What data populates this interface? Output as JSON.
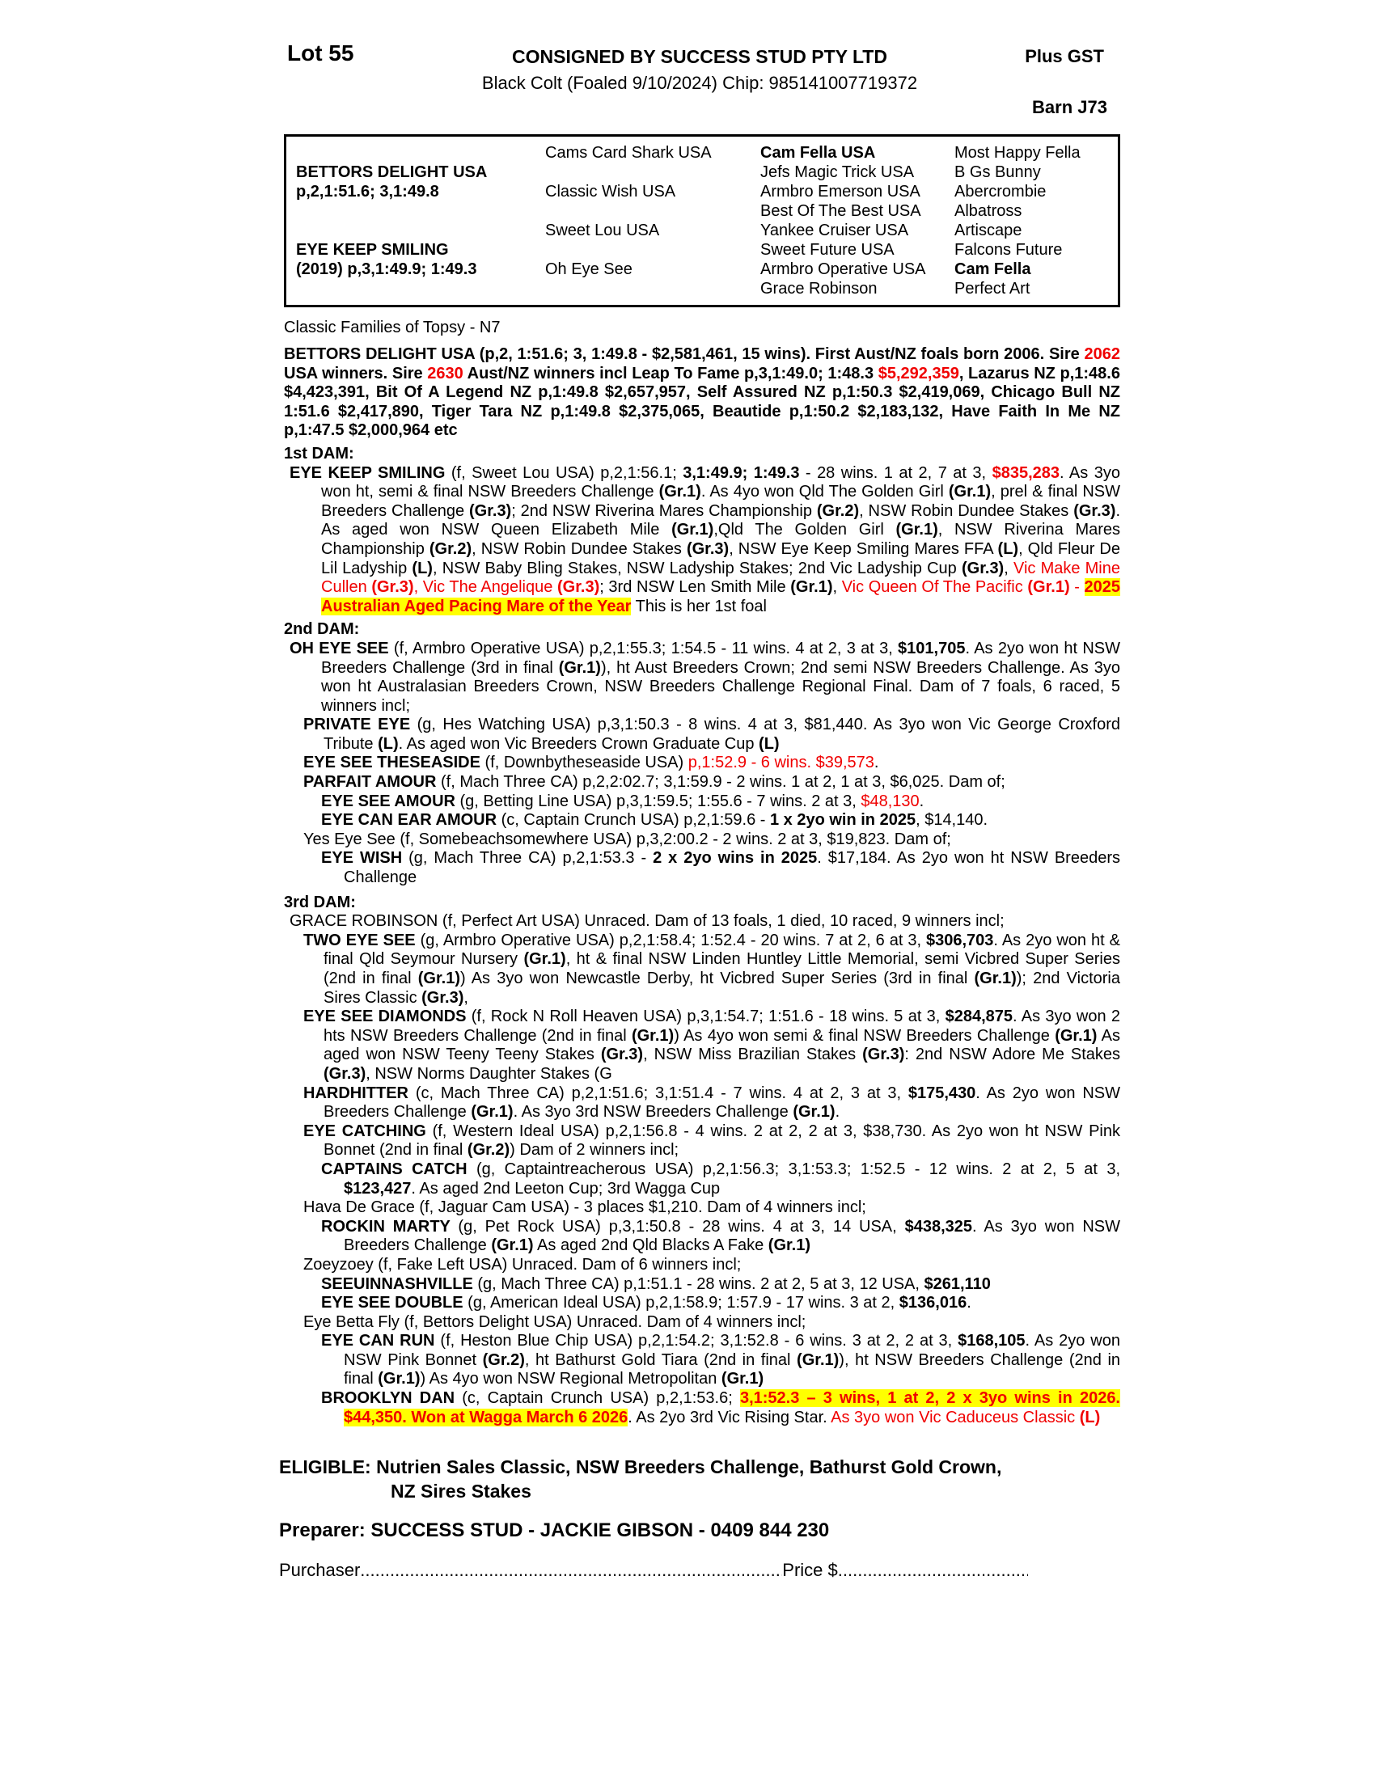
{
  "colors": {
    "red": "#f00000",
    "highlight_yellow": "#ffff00"
  },
  "header": {
    "lot": "Lot 55",
    "consigned": "CONSIGNED BY SUCCESS STUD PTY LTD",
    "plus_gst": "Plus GST",
    "description": "Black Colt (Foaled 9/10/2024) Chip: 985141007719372",
    "barn": "Barn J73"
  },
  "pedigree": {
    "sire_name": "BETTORS DELIGHT USA",
    "sire_record": "p,2,1:51.6; 3,1:49.8",
    "dam_name": "EYE KEEP SMILING",
    "dam_record": "(2019) p,3,1:49.9; 1:49.3",
    "gen2": [
      "Cams Card Shark USA",
      "Classic Wish USA",
      "Sweet Lou USA",
      "Oh Eye See"
    ],
    "gen3": [
      "Cam Fella USA",
      "Jefs Magic Trick USA",
      "Armbro Emerson USA",
      "Best Of The Best USA",
      "Yankee Cruiser USA",
      "Sweet Future USA",
      "Armbro Operative USA",
      "Grace Robinson"
    ],
    "gen4": [
      "Most Happy Fella",
      "B Gs Bunny",
      "Abercrombie",
      "Albatross",
      "Artiscape",
      "Falcons Future",
      "Cam Fella",
      "Perfect Art"
    ]
  },
  "body": {
    "family_line": "Classic Families of Topsy - N7",
    "dam1_head": "1st DAM:",
    "dam2_head": "2nd DAM:",
    "dam3_head": "3rd DAM:",
    "sire": {
      "runs": [
        {
          "t": "BETTORS DELIGHT USA (p,2, 1:51.6; 3, 1:49.8 - $2,581,461, 15 wins). First Aust/NZ foals born 2006. Sire ",
          "s": "b"
        },
        {
          "t": "2062",
          "s": "rb"
        },
        {
          "t": " USA winners. Sire ",
          "s": "b"
        },
        {
          "t": "2630",
          "s": "rb"
        },
        {
          "t": " Aust/NZ winners incl Leap To Fame p,3,1:49.0; 1:48.3 ",
          "s": "b"
        },
        {
          "t": "$5,292,359",
          "s": "rb"
        },
        {
          "t": ", Lazarus NZ p,1:48.6 $4,423,391, Bit Of A Legend NZ p,1:49.8 $2,657,957, Self Assured NZ p,1:50.3 $2,419,069, Chicago Bull NZ 1:51.6 $2,417,890, Tiger Tara NZ p,1:49.8 $2,375,065, Beautide p,1:50.2 $2,183,132, Have Faith In Me NZ p,1:47.5 $2,000,964 etc",
          "s": "b"
        }
      ]
    },
    "eye_keep_smiling": {
      "runs": [
        {
          "t": "EYE KEEP SMILING ",
          "s": "b"
        },
        {
          "t": "(f, Sweet Lou USA) p,2,1:56.1; ",
          "s": ""
        },
        {
          "t": "3,1:49.9; 1:49.3",
          "s": "b"
        },
        {
          "t": " - 28 wins. 1 at 2, 7 at 3, ",
          "s": ""
        },
        {
          "t": "$835,283",
          "s": "rb"
        },
        {
          "t": ". As 3yo won ht, semi & final NSW Breeders Challenge ",
          "s": ""
        },
        {
          "t": "(Gr.1)",
          "s": "b"
        },
        {
          "t": ". As 4yo won Qld The Golden Girl ",
          "s": ""
        },
        {
          "t": "(Gr.1)",
          "s": "b"
        },
        {
          "t": ", prel & final NSW Breeders Challenge ",
          "s": ""
        },
        {
          "t": "(Gr.3)",
          "s": "b"
        },
        {
          "t": "; 2nd NSW Riverina Mares Championship ",
          "s": ""
        },
        {
          "t": "(Gr.2)",
          "s": "b"
        },
        {
          "t": ", NSW Robin Dundee Stakes ",
          "s": ""
        },
        {
          "t": "(Gr.3)",
          "s": "b"
        },
        {
          "t": ". As aged won NSW Queen Elizabeth Mile ",
          "s": ""
        },
        {
          "t": "(Gr.1)",
          "s": "b"
        },
        {
          "t": ",Qld The Golden Girl ",
          "s": ""
        },
        {
          "t": "(Gr.1)",
          "s": "b"
        },
        {
          "t": ", NSW Riverina Mares Championship ",
          "s": ""
        },
        {
          "t": "(Gr.2)",
          "s": "b"
        },
        {
          "t": ", NSW Robin Dundee Stakes ",
          "s": ""
        },
        {
          "t": "(Gr.3)",
          "s": "b"
        },
        {
          "t": ", NSW Eye Keep Smiling Mares FFA ",
          "s": ""
        },
        {
          "t": "(L)",
          "s": "b"
        },
        {
          "t": ", Qld Fleur De Lil Ladyship ",
          "s": ""
        },
        {
          "t": "(L)",
          "s": "b"
        },
        {
          "t": ", NSW Baby Bling Stakes, NSW Ladyship Stakes; 2nd Vic Ladyship Cup ",
          "s": ""
        },
        {
          "t": "(Gr.3)",
          "s": "b"
        },
        {
          "t": ", ",
          "s": ""
        },
        {
          "t": "Vic Make Mine Cullen ",
          "s": "r"
        },
        {
          "t": "(Gr.3)",
          "s": "rb"
        },
        {
          "t": ", Vic The Angelique ",
          "s": "r"
        },
        {
          "t": "(Gr.3)",
          "s": "rb"
        },
        {
          "t": "; 3rd NSW Len Smith Mile ",
          "s": ""
        },
        {
          "t": "(Gr.1)",
          "s": "b"
        },
        {
          "t": ", ",
          "s": ""
        },
        {
          "t": "Vic Queen Of The Pacific ",
          "s": "r"
        },
        {
          "t": "(Gr.1)",
          "s": "rb"
        },
        {
          "t": " - ",
          "s": "r"
        },
        {
          "t": "2025 Australian Aged Pacing Mare of the Year",
          "s": "hl"
        },
        {
          "t": " This is her 1st foal",
          "s": ""
        }
      ]
    },
    "oh_eye_see": {
      "runs": [
        {
          "t": "OH EYE SEE ",
          "s": "b"
        },
        {
          "t": "(f, Armbro Operative USA) p,2,1:55.3; 1:54.5 - 11 wins. 4 at 2, 3 at 3, ",
          "s": ""
        },
        {
          "t": "$101,705",
          "s": "b"
        },
        {
          "t": ". As 2yo won ht NSW Breeders Challenge (3rd in final ",
          "s": ""
        },
        {
          "t": "(Gr.1)",
          "s": "b"
        },
        {
          "t": "), ht Aust Breeders Crown; 2nd semi NSW Breeders Challenge. As 3yo won ht Australasian Breeders Crown, NSW Breeders Challenge Regional Final. Dam of 7 foals, 6 raced, 5 winners incl;",
          "s": ""
        }
      ]
    },
    "private_eye": {
      "runs": [
        {
          "t": "PRIVATE EYE ",
          "s": "b"
        },
        {
          "t": "(g, Hes Watching USA) p,3,1:50.3 - 8 wins. 4 at 3, $81,440. As 3yo won Vic George Croxford Tribute ",
          "s": ""
        },
        {
          "t": "(L)",
          "s": "b"
        },
        {
          "t": ". As aged won Vic Breeders Crown Graduate Cup ",
          "s": ""
        },
        {
          "t": "(L)",
          "s": "b"
        }
      ]
    },
    "eye_see_theseaside": {
      "runs": [
        {
          "t": "EYE SEE THESEASIDE ",
          "s": "b"
        },
        {
          "t": "(f, Downbytheseaside USA) ",
          "s": ""
        },
        {
          "t": "p,1:52.9 - 6 wins. $39,573",
          "s": "r"
        },
        {
          "t": ".",
          "s": ""
        }
      ]
    },
    "parfait_amour": {
      "runs": [
        {
          "t": "PARFAIT AMOUR ",
          "s": "b"
        },
        {
          "t": "(f, Mach Three CA) p,2,2:02.7; 3,1:59.9 - 2 wins. 1 at 2, 1 at 3, $6,025. Dam of;",
          "s": ""
        }
      ]
    },
    "eye_see_amour": {
      "runs": [
        {
          "t": "EYE SEE AMOUR ",
          "s": "b"
        },
        {
          "t": "(g, Betting Line USA) p,3,1:59.5; 1:55.6 - 7 wins. 2 at 3, ",
          "s": ""
        },
        {
          "t": "$48,130",
          "s": "r"
        },
        {
          "t": ".",
          "s": ""
        }
      ]
    },
    "eye_can_ear_amour": {
      "runs": [
        {
          "t": "EYE CAN EAR AMOUR ",
          "s": "b"
        },
        {
          "t": "(c, Captain Crunch USA) p,2,1:59.6 - ",
          "s": ""
        },
        {
          "t": "1 x 2yo win in 2025",
          "s": "b"
        },
        {
          "t": ", $14,140.",
          "s": ""
        }
      ]
    },
    "yes_eye_see": {
      "runs": [
        {
          "t": "Yes Eye See (f, Somebeachsomewhere USA) p,3,2:00.2 - 2 wins. 2 at 3, $19,823. Dam of;",
          "s": ""
        }
      ]
    },
    "eye_wish": {
      "runs": [
        {
          "t": "EYE WISH ",
          "s": "b"
        },
        {
          "t": "(g, Mach Three CA) p,2,1:53.3 - ",
          "s": ""
        },
        {
          "t": "2 x 2yo wins in 2025",
          "s": "b"
        },
        {
          "t": ". $17,184. As 2yo won ht NSW Breeders Challenge",
          "s": ""
        }
      ]
    },
    "grace_robinson": {
      "runs": [
        {
          "t": "GRACE ROBINSON (f, Perfect Art USA) Unraced. Dam of 13 foals, 1 died, 10 raced, 9 winners incl;",
          "s": ""
        }
      ]
    },
    "two_eye_see": {
      "runs": [
        {
          "t": "TWO EYE SEE ",
          "s": "b"
        },
        {
          "t": "(g, Armbro Operative USA) p,2,1:58.4; 1:52.4 - 20 wins. 7 at 2, 6 at 3, ",
          "s": ""
        },
        {
          "t": "$306,703",
          "s": "b"
        },
        {
          "t": ". As 2yo won ht & final Qld Seymour Nursery ",
          "s": ""
        },
        {
          "t": "(Gr.1)",
          "s": "b"
        },
        {
          "t": ", ht & final NSW Linden Huntley Little Memorial, semi Vicbred Super Series (2nd in final ",
          "s": ""
        },
        {
          "t": "(Gr.1)",
          "s": "b"
        },
        {
          "t": ") As 3yo won Newcastle Derby, ht Vicbred Super Series (3rd in final ",
          "s": ""
        },
        {
          "t": "(Gr.1)",
          "s": "b"
        },
        {
          "t": "); 2nd Victoria Sires Classic ",
          "s": ""
        },
        {
          "t": "(Gr.3)",
          "s": "b"
        },
        {
          "t": ",",
          "s": ""
        }
      ]
    },
    "eye_see_diamonds": {
      "runs": [
        {
          "t": "EYE SEE DIAMONDS ",
          "s": "b"
        },
        {
          "t": "(f, Rock N Roll Heaven USA) p,3,1:54.7; 1:51.6 - 18 wins. 5 at 3, ",
          "s": ""
        },
        {
          "t": "$284,875",
          "s": "b"
        },
        {
          "t": ". As 3yo won 2 hts NSW Breeders Challenge (2nd in final ",
          "s": ""
        },
        {
          "t": "(Gr.1)",
          "s": "b"
        },
        {
          "t": ") As 4yo won semi & final NSW Breeders Challenge ",
          "s": ""
        },
        {
          "t": "(Gr.1)",
          "s": "b"
        },
        {
          "t": " As aged won NSW Teeny Teeny Stakes ",
          "s": ""
        },
        {
          "t": "(Gr.3)",
          "s": "b"
        },
        {
          "t": ", NSW Miss Brazilian Stakes ",
          "s": ""
        },
        {
          "t": "(Gr.3)",
          "s": "b"
        },
        {
          "t": ": 2nd NSW Adore Me Stakes ",
          "s": ""
        },
        {
          "t": "(Gr.3)",
          "s": "b"
        },
        {
          "t": ", NSW Norms Daughter Stakes (G",
          "s": ""
        }
      ]
    },
    "hardhitter": {
      "runs": [
        {
          "t": "HARDHITTER ",
          "s": "b"
        },
        {
          "t": "(c, Mach Three CA) p,2,1:51.6; 3,1:51.4 - 7 wins. 4 at 2, 3 at 3, ",
          "s": ""
        },
        {
          "t": "$175,430",
          "s": "b"
        },
        {
          "t": ". As 2yo won NSW Breeders Challenge ",
          "s": ""
        },
        {
          "t": "(Gr.1)",
          "s": "b"
        },
        {
          "t": ". As 3yo 3rd NSW Breeders Challenge ",
          "s": ""
        },
        {
          "t": "(Gr.1)",
          "s": "b"
        },
        {
          "t": ".",
          "s": ""
        }
      ]
    },
    "eye_catching": {
      "runs": [
        {
          "t": "EYE CATCHING ",
          "s": "b"
        },
        {
          "t": "(f, Western Ideal USA) p,2,1:56.8 - 4 wins. 2 at 2, 2 at 3, $38,730. As 2yo won ht NSW Pink Bonnet (2nd in final ",
          "s": ""
        },
        {
          "t": "(Gr.2)",
          "s": "b"
        },
        {
          "t": ") Dam of 2 winners incl;",
          "s": ""
        }
      ]
    },
    "captains_catch": {
      "runs": [
        {
          "t": "CAPTAINS CATCH ",
          "s": "b"
        },
        {
          "t": "(g, Captaintreacherous USA) p,2,1:56.3; 3,1:53.3; 1:52.5 - 12 wins. 2 at 2, 5 at 3, ",
          "s": ""
        },
        {
          "t": "$123,427",
          "s": "b"
        },
        {
          "t": ". As aged 2nd Leeton Cup; 3rd Wagga Cup",
          "s": ""
        }
      ]
    },
    "hava_de_grace": {
      "runs": [
        {
          "t": "Hava De Grace (f, Jaguar Cam USA) - 3 places $1,210. Dam of 4 winners incl;",
          "s": ""
        }
      ]
    },
    "rockin_marty": {
      "runs": [
        {
          "t": "ROCKIN MARTY ",
          "s": "b"
        },
        {
          "t": "(g, Pet Rock USA) p,3,1:50.8 - 28 wins. 4 at 3, 14 USA, ",
          "s": ""
        },
        {
          "t": "$438,325",
          "s": "b"
        },
        {
          "t": ". As 3yo won NSW Breeders Challenge ",
          "s": ""
        },
        {
          "t": "(Gr.1)",
          "s": "b"
        },
        {
          "t": " As aged 2nd Qld Blacks A Fake ",
          "s": ""
        },
        {
          "t": "(Gr.1)",
          "s": "b"
        }
      ]
    },
    "zoeyzoey": {
      "runs": [
        {
          "t": "Zoeyzoey (f, Fake Left USA) Unraced. Dam of 6 winners incl;",
          "s": ""
        }
      ]
    },
    "seeuinnashville": {
      "runs": [
        {
          "t": "SEEUINNASHVILLE ",
          "s": "b"
        },
        {
          "t": "(g, Mach Three CA) p,1:51.1 - 28 wins. 2 at 2, 5 at 3, 12 USA, ",
          "s": ""
        },
        {
          "t": "$261,110",
          "s": "b"
        }
      ]
    },
    "eye_see_double": {
      "runs": [
        {
          "t": "EYE SEE DOUBLE ",
          "s": "b"
        },
        {
          "t": "(g, American Ideal USA) p,2,1:58.9; 1:57.9 - 17 wins. 3 at 2, ",
          "s": ""
        },
        {
          "t": "$136,016",
          "s": "b"
        },
        {
          "t": ".",
          "s": ""
        }
      ]
    },
    "eye_betta_fly": {
      "runs": [
        {
          "t": "Eye Betta Fly (f, Bettors Delight USA) Unraced. Dam of 4 winners incl;",
          "s": ""
        }
      ]
    },
    "eye_can_run": {
      "runs": [
        {
          "t": "EYE CAN RUN ",
          "s": "b"
        },
        {
          "t": "(f, Heston Blue Chip USA) p,2,1:54.2; 3,1:52.8 - 6 wins. 3 at 2, 2 at 3, ",
          "s": ""
        },
        {
          "t": "$168,105",
          "s": "b"
        },
        {
          "t": ". As 2yo won NSW Pink Bonnet ",
          "s": ""
        },
        {
          "t": "(Gr.2)",
          "s": "b"
        },
        {
          "t": ", ht Bathurst Gold Tiara (2nd in final ",
          "s": ""
        },
        {
          "t": "(Gr.1)",
          "s": "b"
        },
        {
          "t": "), ht NSW Breeders Challenge (2nd in final ",
          "s": ""
        },
        {
          "t": "(Gr.1)",
          "s": "b"
        },
        {
          "t": ") As 4yo won NSW Regional Metropolitan ",
          "s": ""
        },
        {
          "t": "(Gr.1)",
          "s": "b"
        }
      ]
    },
    "brooklyn_dan": {
      "runs": [
        {
          "t": "BROOKLYN DAN ",
          "s": "b"
        },
        {
          "t": "(c, Captain Crunch USA) p,2,1:53.6; ",
          "s": ""
        },
        {
          "t": "3,1:52.3 – 3 wins, 1 at 2, 2 x 3yo wins in 2026. $44,350. Won at Wagga March 6 2026",
          "s": "hl"
        },
        {
          "t": ". As 2yo 3rd Vic Rising Star. ",
          "s": ""
        },
        {
          "t": "As 3yo won Vic Caduceus Classic ",
          "s": "r"
        },
        {
          "t": "(L)",
          "s": "rb"
        }
      ]
    }
  },
  "footer": {
    "eligible_line1": "ELIGIBLE: Nutrien Sales Classic, NSW Breeders Challenge, Bathurst Gold Crown,",
    "eligible_line2": "NZ Sires Stakes",
    "preparer": "Preparer: SUCCESS STUD - JACKIE GIBSON - 0409 844 230",
    "purchaser_label": "Purchaser",
    "purchaser_dots": "..............................................................................................................",
    "price_label": "Price $",
    "price_dots": "......................................................."
  }
}
